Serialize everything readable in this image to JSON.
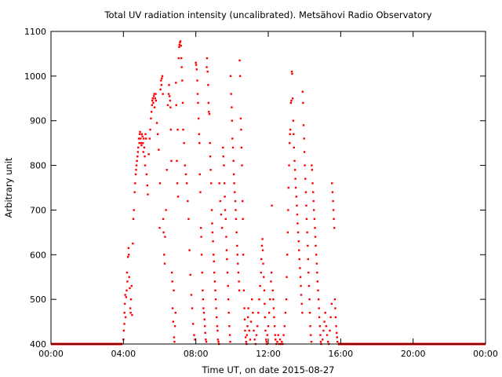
{
  "chart_data": {
    "type": "scatter",
    "title": "Total UV radiation intensity (uncalibrated). Metsähovi Radio Observatory",
    "xlabel": "Time UT, on date 2015-08-27",
    "ylabel": "Arbitrary unit",
    "xlim": [
      0,
      24
    ],
    "ylim": [
      400,
      1100
    ],
    "x_ticks": [
      {
        "v": 0,
        "label": "00:00"
      },
      {
        "v": 4,
        "label": "04:00"
      },
      {
        "v": 8,
        "label": "08:00"
      },
      {
        "v": 12,
        "label": "12:00"
      },
      {
        "v": 16,
        "label": "16:00"
      },
      {
        "v": 20,
        "label": "20:00"
      },
      {
        "v": 24,
        "label": "00:00"
      }
    ],
    "y_ticks": [
      {
        "v": 400,
        "label": "400"
      },
      {
        "v": 500,
        "label": "500"
      },
      {
        "v": 600,
        "label": "600"
      },
      {
        "v": 700,
        "label": "700"
      },
      {
        "v": 800,
        "label": "800"
      },
      {
        "v": 900,
        "label": "900"
      },
      {
        "v": 1000,
        "label": "1000"
      },
      {
        "v": 1100,
        "label": "1100"
      }
    ],
    "grid": false,
    "series_color": "#ff0000",
    "baseline_segments": [
      {
        "x_start": 0.0,
        "x_end": 3.95,
        "y": 400
      },
      {
        "x_start": 15.85,
        "x_end": 24.0,
        "y": 400
      }
    ],
    "points": [
      [
        4.0,
        410
      ],
      [
        4.02,
        430
      ],
      [
        4.05,
        445
      ],
      [
        4.06,
        470
      ],
      [
        4.08,
        490
      ],
      [
        4.1,
        510
      ],
      [
        4.12,
        460
      ],
      [
        4.15,
        505
      ],
      [
        4.18,
        520
      ],
      [
        4.2,
        560
      ],
      [
        4.22,
        540
      ],
      [
        4.25,
        595
      ],
      [
        4.28,
        615
      ],
      [
        4.3,
        600
      ],
      [
        4.32,
        550
      ],
      [
        4.35,
        525
      ],
      [
        4.38,
        480
      ],
      [
        4.4,
        470
      ],
      [
        4.42,
        500
      ],
      [
        4.45,
        530
      ],
      [
        4.48,
        465
      ],
      [
        4.52,
        625
      ],
      [
        4.55,
        680
      ],
      [
        4.58,
        700
      ],
      [
        4.62,
        740
      ],
      [
        4.65,
        760
      ],
      [
        4.68,
        780
      ],
      [
        4.7,
        790
      ],
      [
        4.72,
        800
      ],
      [
        4.75,
        810
      ],
      [
        4.78,
        820
      ],
      [
        4.8,
        830
      ],
      [
        4.82,
        840
      ],
      [
        4.85,
        860
      ],
      [
        4.88,
        850
      ],
      [
        4.9,
        870
      ],
      [
        4.92,
        875
      ],
      [
        4.95,
        860
      ],
      [
        4.98,
        850
      ],
      [
        5.0,
        845
      ],
      [
        5.02,
        870
      ],
      [
        5.05,
        865
      ],
      [
        5.08,
        850
      ],
      [
        5.1,
        830
      ],
      [
        5.12,
        860
      ],
      [
        5.15,
        840
      ],
      [
        5.18,
        820
      ],
      [
        5.2,
        800
      ],
      [
        5.22,
        870
      ],
      [
        5.25,
        860
      ],
      [
        5.28,
        780
      ],
      [
        5.32,
        755
      ],
      [
        5.35,
        735
      ],
      [
        5.4,
        825
      ],
      [
        5.45,
        860
      ],
      [
        5.48,
        880
      ],
      [
        5.52,
        905
      ],
      [
        5.55,
        920
      ],
      [
        5.58,
        935
      ],
      [
        5.6,
        945
      ],
      [
        5.62,
        950
      ],
      [
        5.65,
        940
      ],
      [
        5.68,
        955
      ],
      [
        5.7,
        960
      ],
      [
        5.72,
        930
      ],
      [
        5.75,
        950
      ],
      [
        5.78,
        960
      ],
      [
        5.8,
        945
      ],
      [
        5.85,
        895
      ],
      [
        5.9,
        870
      ],
      [
        5.95,
        835
      ],
      [
        6.0,
        660
      ],
      [
        6.02,
        760
      ],
      [
        6.05,
        970
      ],
      [
        6.08,
        990
      ],
      [
        6.1,
        980
      ],
      [
        6.12,
        995
      ],
      [
        6.15,
        1000
      ],
      [
        6.18,
        960
      ],
      [
        6.2,
        680
      ],
      [
        6.22,
        650
      ],
      [
        6.25,
        600
      ],
      [
        6.28,
        580
      ],
      [
        6.3,
        640
      ],
      [
        6.35,
        700
      ],
      [
        6.4,
        790
      ],
      [
        6.45,
        935
      ],
      [
        6.5,
        960
      ],
      [
        6.52,
        980
      ],
      [
        6.55,
        955
      ],
      [
        6.58,
        945
      ],
      [
        6.6,
        930
      ],
      [
        6.62,
        880
      ],
      [
        6.65,
        810
      ],
      [
        6.68,
        560
      ],
      [
        6.7,
        540
      ],
      [
        6.72,
        480
      ],
      [
        6.75,
        450
      ],
      [
        6.78,
        520
      ],
      [
        6.8,
        415
      ],
      [
        6.82,
        405
      ],
      [
        6.85,
        440
      ],
      [
        6.88,
        470
      ],
      [
        6.9,
        985
      ],
      [
        6.92,
        935
      ],
      [
        6.95,
        810
      ],
      [
        6.98,
        760
      ],
      [
        7.0,
        880
      ],
      [
        7.02,
        730
      ],
      [
        7.05,
        1040
      ],
      [
        7.08,
        1065
      ],
      [
        7.1,
        1070
      ],
      [
        7.12,
        1075
      ],
      [
        7.15,
        1078
      ],
      [
        7.18,
        1068
      ],
      [
        7.2,
        1040
      ],
      [
        7.22,
        1020
      ],
      [
        7.25,
        990
      ],
      [
        7.28,
        940
      ],
      [
        7.3,
        880
      ],
      [
        7.35,
        850
      ],
      [
        7.4,
        800
      ],
      [
        7.45,
        780
      ],
      [
        7.5,
        760
      ],
      [
        7.55,
        720
      ],
      [
        7.6,
        680
      ],
      [
        7.65,
        610
      ],
      [
        7.7,
        555
      ],
      [
        7.75,
        510
      ],
      [
        7.8,
        480
      ],
      [
        7.85,
        445
      ],
      [
        7.9,
        420
      ],
      [
        7.95,
        410
      ],
      [
        8.0,
        1030
      ],
      [
        8.02,
        1025
      ],
      [
        8.05,
        1015
      ],
      [
        8.08,
        990
      ],
      [
        8.1,
        960
      ],
      [
        8.12,
        940
      ],
      [
        8.15,
        905
      ],
      [
        8.18,
        870
      ],
      [
        8.2,
        850
      ],
      [
        8.22,
        780
      ],
      [
        8.25,
        740
      ],
      [
        8.28,
        660
      ],
      [
        8.3,
        640
      ],
      [
        8.32,
        600
      ],
      [
        8.35,
        560
      ],
      [
        8.38,
        520
      ],
      [
        8.4,
        500
      ],
      [
        8.42,
        480
      ],
      [
        8.45,
        470
      ],
      [
        8.48,
        455
      ],
      [
        8.5,
        440
      ],
      [
        8.52,
        425
      ],
      [
        8.55,
        410
      ],
      [
        8.58,
        405
      ],
      [
        8.6,
        1020
      ],
      [
        8.62,
        1040
      ],
      [
        8.65,
        1010
      ],
      [
        8.68,
        980
      ],
      [
        8.7,
        940
      ],
      [
        8.72,
        920
      ],
      [
        8.75,
        915
      ],
      [
        8.78,
        850
      ],
      [
        8.8,
        820
      ],
      [
        8.82,
        790
      ],
      [
        8.85,
        760
      ],
      [
        8.88,
        700
      ],
      [
        8.9,
        670
      ],
      [
        8.92,
        650
      ],
      [
        8.95,
        630
      ],
      [
        8.98,
        600
      ],
      [
        9.0,
        585
      ],
      [
        9.02,
        560
      ],
      [
        9.05,
        540
      ],
      [
        9.08,
        520
      ],
      [
        9.1,
        500
      ],
      [
        9.12,
        480
      ],
      [
        9.15,
        460
      ],
      [
        9.18,
        440
      ],
      [
        9.2,
        430
      ],
      [
        9.22,
        410
      ],
      [
        9.25,
        405
      ],
      [
        9.28,
        400
      ],
      [
        9.3,
        760
      ],
      [
        9.35,
        720
      ],
      [
        9.4,
        690
      ],
      [
        9.45,
        660
      ],
      [
        9.5,
        840
      ],
      [
        9.52,
        820
      ],
      [
        9.55,
        800
      ],
      [
        9.58,
        760
      ],
      [
        9.6,
        730
      ],
      [
        9.62,
        700
      ],
      [
        9.65,
        680
      ],
      [
        9.68,
        640
      ],
      [
        9.7,
        610
      ],
      [
        9.72,
        590
      ],
      [
        9.75,
        560
      ],
      [
        9.78,
        530
      ],
      [
        9.8,
        500
      ],
      [
        9.82,
        470
      ],
      [
        9.85,
        440
      ],
      [
        9.88,
        420
      ],
      [
        9.9,
        405
      ],
      [
        9.92,
        1000
      ],
      [
        9.95,
        960
      ],
      [
        9.98,
        930
      ],
      [
        10.0,
        900
      ],
      [
        10.02,
        860
      ],
      [
        10.05,
        840
      ],
      [
        10.08,
        810
      ],
      [
        10.1,
        780
      ],
      [
        10.12,
        760
      ],
      [
        10.15,
        740
      ],
      [
        10.18,
        720
      ],
      [
        10.2,
        700
      ],
      [
        10.22,
        680
      ],
      [
        10.25,
        650
      ],
      [
        10.28,
        620
      ],
      [
        10.3,
        600
      ],
      [
        10.32,
        580
      ],
      [
        10.35,
        560
      ],
      [
        10.38,
        540
      ],
      [
        10.4,
        520
      ],
      [
        10.42,
        1035
      ],
      [
        10.45,
        1000
      ],
      [
        10.48,
        905
      ],
      [
        10.5,
        880
      ],
      [
        10.52,
        840
      ],
      [
        10.55,
        800
      ],
      [
        10.58,
        720
      ],
      [
        10.6,
        680
      ],
      [
        10.62,
        600
      ],
      [
        10.65,
        520
      ],
      [
        10.68,
        480
      ],
      [
        10.7,
        455
      ],
      [
        10.72,
        430
      ],
      [
        10.75,
        415
      ],
      [
        10.78,
        405
      ],
      [
        10.8,
        400
      ],
      [
        10.82,
        420
      ],
      [
        10.85,
        440
      ],
      [
        10.88,
        460
      ],
      [
        10.9,
        480
      ],
      [
        10.95,
        430
      ],
      [
        11.0,
        410
      ],
      [
        11.05,
        450
      ],
      [
        11.1,
        500
      ],
      [
        11.15,
        470
      ],
      [
        11.2,
        430
      ],
      [
        11.25,
        410
      ],
      [
        11.3,
        400
      ],
      [
        11.35,
        420
      ],
      [
        11.4,
        440
      ],
      [
        11.45,
        470
      ],
      [
        11.5,
        500
      ],
      [
        11.55,
        530
      ],
      [
        11.6,
        560
      ],
      [
        11.62,
        590
      ],
      [
        11.65,
        620
      ],
      [
        11.68,
        635
      ],
      [
        11.7,
        610
      ],
      [
        11.72,
        580
      ],
      [
        11.75,
        550
      ],
      [
        11.78,
        520
      ],
      [
        11.8,
        490
      ],
      [
        11.82,
        460
      ],
      [
        11.85,
        430
      ],
      [
        11.88,
        410
      ],
      [
        11.9,
        405
      ],
      [
        11.92,
        400
      ],
      [
        11.95,
        420
      ],
      [
        12.0,
        440
      ],
      [
        12.05,
        470
      ],
      [
        12.1,
        500
      ],
      [
        12.15,
        540
      ],
      [
        12.18,
        560
      ],
      [
        12.2,
        710
      ],
      [
        12.25,
        520
      ],
      [
        12.28,
        500
      ],
      [
        12.3,
        480
      ],
      [
        12.32,
        460
      ],
      [
        12.35,
        440
      ],
      [
        12.38,
        420
      ],
      [
        12.4,
        410
      ],
      [
        12.45,
        400
      ],
      [
        12.5,
        405
      ],
      [
        12.55,
        420
      ],
      [
        12.6,
        400
      ],
      [
        12.65,
        410
      ],
      [
        12.7,
        400
      ],
      [
        12.75,
        405
      ],
      [
        12.8,
        400
      ],
      [
        12.85,
        420
      ],
      [
        12.9,
        440
      ],
      [
        12.95,
        470
      ],
      [
        13.0,
        500
      ],
      [
        13.02,
        550
      ],
      [
        13.05,
        600
      ],
      [
        13.08,
        650
      ],
      [
        13.1,
        700
      ],
      [
        13.12,
        750
      ],
      [
        13.15,
        800
      ],
      [
        13.18,
        850
      ],
      [
        13.2,
        870
      ],
      [
        13.22,
        880
      ],
      [
        13.25,
        940
      ],
      [
        13.28,
        945
      ],
      [
        13.3,
        1010
      ],
      [
        13.32,
        1005
      ],
      [
        13.35,
        950
      ],
      [
        13.38,
        900
      ],
      [
        13.4,
        870
      ],
      [
        13.42,
        840
      ],
      [
        13.45,
        810
      ],
      [
        13.48,
        790
      ],
      [
        13.5,
        770
      ],
      [
        13.52,
        750
      ],
      [
        13.55,
        730
      ],
      [
        13.58,
        710
      ],
      [
        13.6,
        690
      ],
      [
        13.62,
        670
      ],
      [
        13.65,
        650
      ],
      [
        13.68,
        630
      ],
      [
        13.7,
        610
      ],
      [
        13.72,
        590
      ],
      [
        13.75,
        570
      ],
      [
        13.78,
        550
      ],
      [
        13.8,
        530
      ],
      [
        13.82,
        510
      ],
      [
        13.85,
        490
      ],
      [
        13.88,
        470
      ],
      [
        13.9,
        965
      ],
      [
        13.92,
        940
      ],
      [
        13.95,
        890
      ],
      [
        13.98,
        860
      ],
      [
        14.0,
        830
      ],
      [
        14.02,
        800
      ],
      [
        14.05,
        770
      ],
      [
        14.08,
        740
      ],
      [
        14.1,
        710
      ],
      [
        14.12,
        680
      ],
      [
        14.15,
        650
      ],
      [
        14.18,
        620
      ],
      [
        14.2,
        590
      ],
      [
        14.22,
        560
      ],
      [
        14.25,
        530
      ],
      [
        14.28,
        500
      ],
      [
        14.3,
        470
      ],
      [
        14.32,
        440
      ],
      [
        14.35,
        420
      ],
      [
        14.38,
        405
      ],
      [
        14.4,
        800
      ],
      [
        14.42,
        790
      ],
      [
        14.45,
        760
      ],
      [
        14.48,
        740
      ],
      [
        14.5,
        720
      ],
      [
        14.52,
        700
      ],
      [
        14.55,
        680
      ],
      [
        14.58,
        660
      ],
      [
        14.6,
        640
      ],
      [
        14.62,
        620
      ],
      [
        14.65,
        600
      ],
      [
        14.68,
        580
      ],
      [
        14.7,
        560
      ],
      [
        14.72,
        540
      ],
      [
        14.75,
        520
      ],
      [
        14.78,
        500
      ],
      [
        14.8,
        480
      ],
      [
        14.82,
        460
      ],
      [
        14.85,
        440
      ],
      [
        14.88,
        420
      ],
      [
        14.9,
        405
      ],
      [
        14.92,
        400
      ],
      [
        15.0,
        410
      ],
      [
        15.05,
        430
      ],
      [
        15.1,
        450
      ],
      [
        15.15,
        470
      ],
      [
        15.2,
        440
      ],
      [
        15.25,
        420
      ],
      [
        15.3,
        405
      ],
      [
        15.35,
        400
      ],
      [
        15.4,
        430
      ],
      [
        15.45,
        460
      ],
      [
        15.5,
        490
      ],
      [
        15.52,
        760
      ],
      [
        15.55,
        740
      ],
      [
        15.58,
        720
      ],
      [
        15.6,
        700
      ],
      [
        15.62,
        680
      ],
      [
        15.65,
        660
      ],
      [
        15.68,
        500
      ],
      [
        15.7,
        480
      ],
      [
        15.72,
        460
      ],
      [
        15.75,
        440
      ],
      [
        15.78,
        425
      ],
      [
        15.8,
        415
      ],
      [
        15.82,
        405
      ]
    ]
  }
}
